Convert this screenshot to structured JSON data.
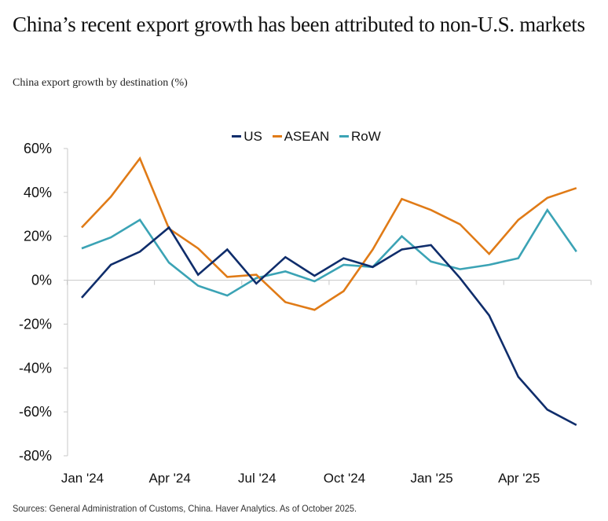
{
  "title": "China’s recent export growth has been attributed to non-U.S. markets",
  "subtitle": "China export growth by destination (%)",
  "source": "Sources: General Administration of Customs, China. Haver Analytics. As of October 2025.",
  "chart_data": {
    "type": "line",
    "title": "China export growth by destination (%)",
    "xlabel": "",
    "ylabel": "",
    "ylim": [
      -80,
      60
    ],
    "yticks": [
      60,
      40,
      20,
      0,
      -20,
      -40,
      -60,
      -80
    ],
    "ytick_labels": [
      "60%",
      "40%",
      "20%",
      "0%",
      "-20%",
      "-40%",
      "-60%",
      "-80%"
    ],
    "x": [
      "Jan '24",
      "Feb '24",
      "Mar '24",
      "Apr '24",
      "May '24",
      "Jun '24",
      "Jul '24",
      "Aug '24",
      "Sep '24",
      "Oct '24",
      "Nov '24",
      "Dec '24",
      "Jan '25",
      "Feb '25",
      "Mar '25",
      "Apr '25",
      "May '25",
      "Jun '25"
    ],
    "xtick_labels": [
      "Jan '24",
      "Apr '24",
      "Jul '24",
      "Oct '24",
      "Jan '25",
      "Apr '25"
    ],
    "xtick_indices": [
      0,
      3,
      6,
      9,
      12,
      15
    ],
    "legend_position": "top-center",
    "grid": false,
    "series": [
      {
        "name": "US",
        "color": "#0f2d6b",
        "values": [
          -8,
          7,
          13,
          24,
          2.5,
          14,
          -1.5,
          10.5,
          2,
          10,
          6,
          14,
          16,
          1,
          -16,
          -44,
          -59,
          -66
        ]
      },
      {
        "name": "ASEAN",
        "color": "#e07b17",
        "values": [
          24,
          38,
          55.5,
          23.5,
          14.5,
          1.5,
          2.5,
          -10,
          -13.5,
          -5,
          14,
          37,
          32,
          25.5,
          12,
          27.5,
          37.5,
          42
        ]
      },
      {
        "name": "RoW",
        "color": "#3ba3b5",
        "values": [
          14.5,
          19.5,
          27.5,
          8,
          -2.5,
          -7,
          1,
          4,
          -0.5,
          7,
          6,
          20,
          8.5,
          5,
          7,
          10,
          32,
          13
        ]
      }
    ]
  }
}
